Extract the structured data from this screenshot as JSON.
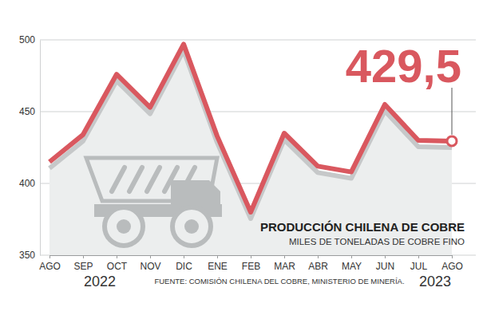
{
  "chart_data": {
    "type": "line",
    "title": "PRODUCCIÓN CHILENA DE COBRE",
    "subtitle": "MILES DE TONELADAS DE COBRE FINO",
    "source": "FUENTE: COMISIÓN CHILENA DEL COBRE, MINISTERIO DE MINERÍA.",
    "categories": [
      "AGO",
      "SEP",
      "OCT",
      "NOV",
      "DIC",
      "ENE",
      "FEB",
      "MAR",
      "ABR",
      "MAY",
      "JUN",
      "JUL",
      "AGO"
    ],
    "year_labels": [
      "2022",
      "2023"
    ],
    "values": [
      415,
      434,
      476,
      453,
      497,
      433,
      380,
      435,
      412,
      408,
      455,
      430,
      429.5
    ],
    "value_labels": [
      null,
      null,
      null,
      null,
      null,
      null,
      null,
      null,
      null,
      null,
      null,
      null,
      "429,5"
    ],
    "color": "#d9585f",
    "ylim": [
      350,
      500
    ],
    "yticks": [
      350,
      400,
      450,
      500
    ],
    "grid": true
  }
}
